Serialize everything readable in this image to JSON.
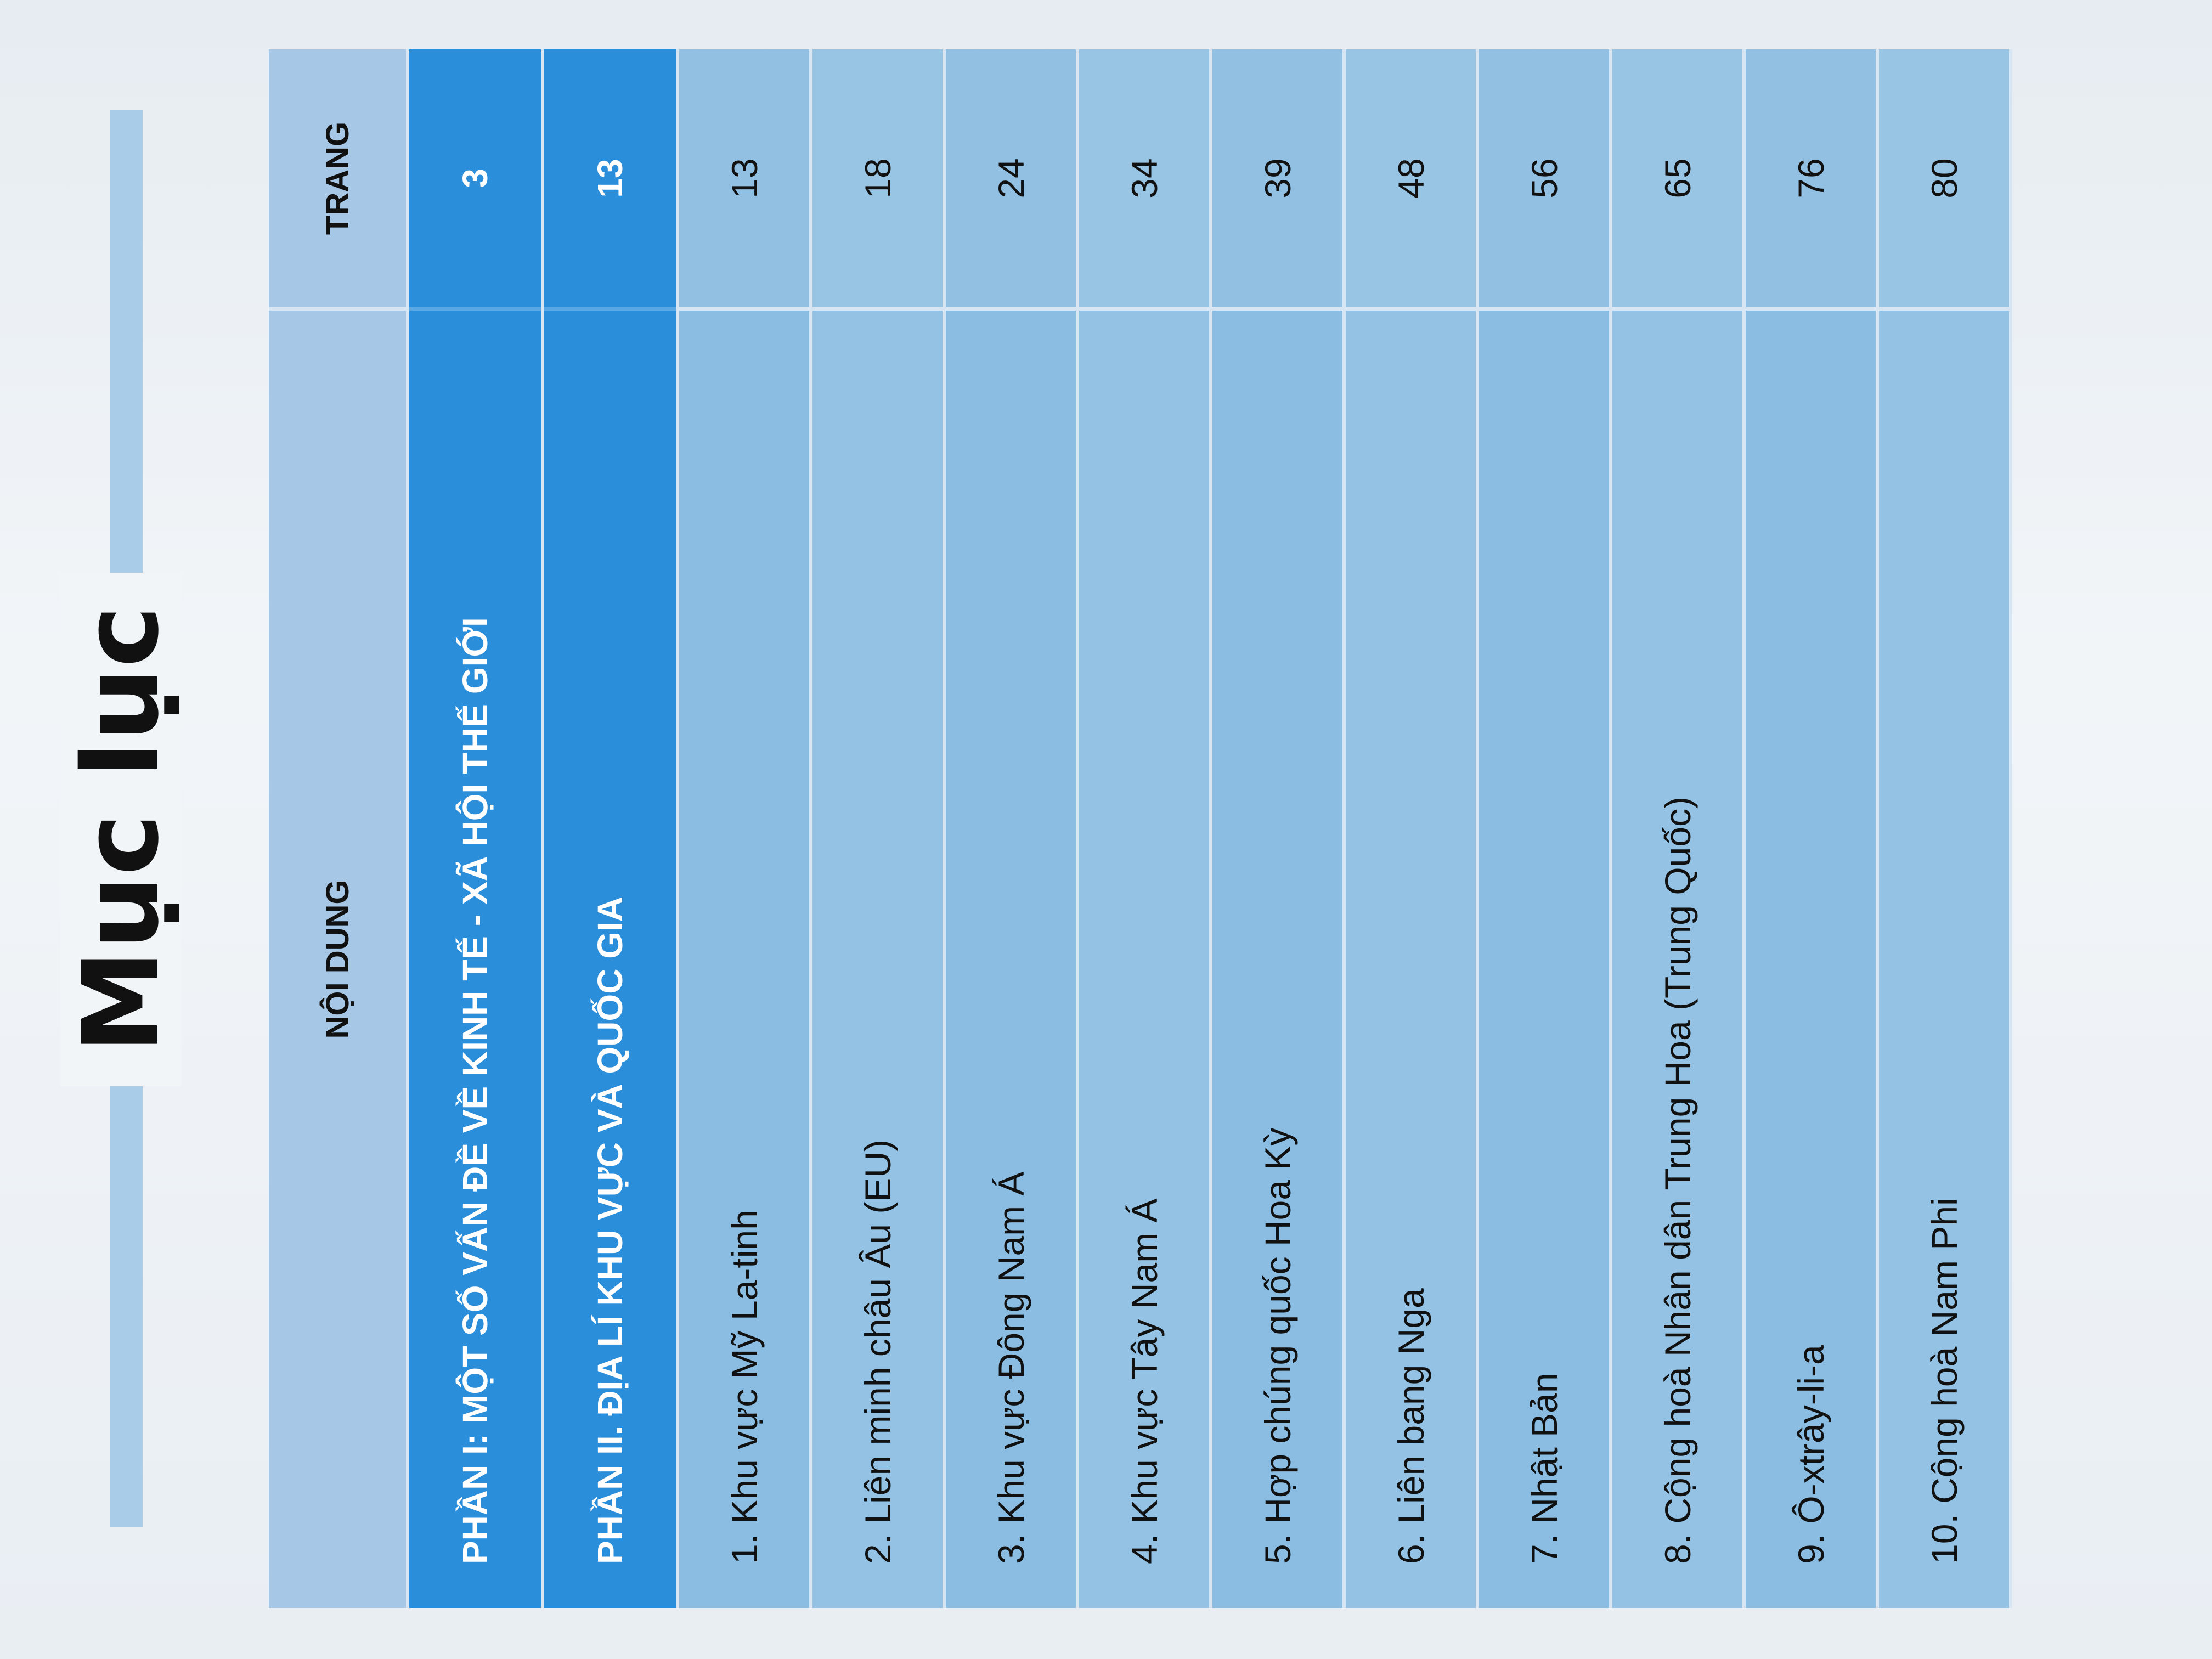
{
  "title": "Mục lục",
  "table": {
    "headers": {
      "content": "NỘI DUNG",
      "page": "TRANG"
    },
    "parts": [
      {
        "label": "PHẦN I: MỘT SỐ VẤN ĐỀ VỀ KINH TẾ - XÃ HỘI THẾ GIỚI",
        "page": "3"
      },
      {
        "label": "PHẦN II. ĐỊA LÍ KHU VỰC VÀ QUỐC GIA",
        "page": "13"
      }
    ],
    "items": [
      {
        "label": "1. Khu vực Mỹ La-tinh",
        "page": "13"
      },
      {
        "label": "2. Liên minh châu Âu (EU)",
        "page": "18"
      },
      {
        "label": "3. Khu vực Đông Nam Á",
        "page": "24"
      },
      {
        "label": "4. Khu vực Tây Nam Á",
        "page": "34"
      },
      {
        "label": "5. Hợp chúng quốc Hoa Kỳ",
        "page": "39"
      },
      {
        "label": "6. Liên bang Nga",
        "page": "48"
      },
      {
        "label": "7. Nhật Bản",
        "page": "56"
      },
      {
        "label": "8. Cộng hoà Nhân dân Trung Hoa (Trung Quốc)",
        "page": "65"
      },
      {
        "label": "9. Ô-xtrây-li-a",
        "page": "76"
      },
      {
        "label": "10. Cộng hoà Nam Phi",
        "page": "80"
      }
    ]
  },
  "colors": {
    "part_row": "#2a8edb",
    "item_row": "#8bbde2",
    "header_row": "#a6c8e6"
  }
}
